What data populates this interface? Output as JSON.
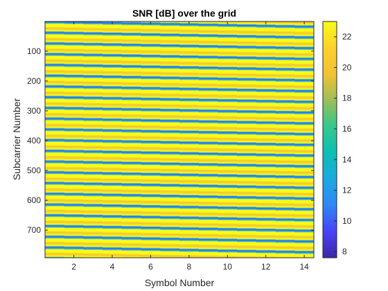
{
  "chart_data": {
    "type": "heatmap",
    "title": "SNR [dB] over the grid",
    "xlabel": "Symbol Number",
    "ylabel": "Subcarrier Number",
    "x_range": [
      1,
      14
    ],
    "y_range": [
      1,
      792
    ],
    "x_ticks": [
      2,
      4,
      6,
      8,
      10,
      12,
      14
    ],
    "y_ticks": [
      100,
      200,
      300,
      400,
      500,
      600,
      700
    ],
    "colorbar": {
      "ticks": [
        8,
        10,
        12,
        14,
        16,
        18,
        20,
        22
      ],
      "range": [
        7.6,
        23
      ],
      "colormap": [
        "#3e26a8",
        "#4743f8",
        "#2e87f7",
        "#1ca9df",
        "#0cbfb4",
        "#35c88c",
        "#9cbe59",
        "#f3c232",
        "#fcd02c",
        "#f9fb15"
      ]
    },
    "pattern": {
      "stripe_count": 22,
      "stripe_period_subcarriers": 36,
      "drift_per_symbol_subcarriers": 1.2,
      "snr_max_db": 23,
      "snr_min_db": 8,
      "band_color_yellow": "#f9fb15",
      "band_color_orange": "#f3c232",
      "null_color_blue": "#4743f8"
    }
  }
}
